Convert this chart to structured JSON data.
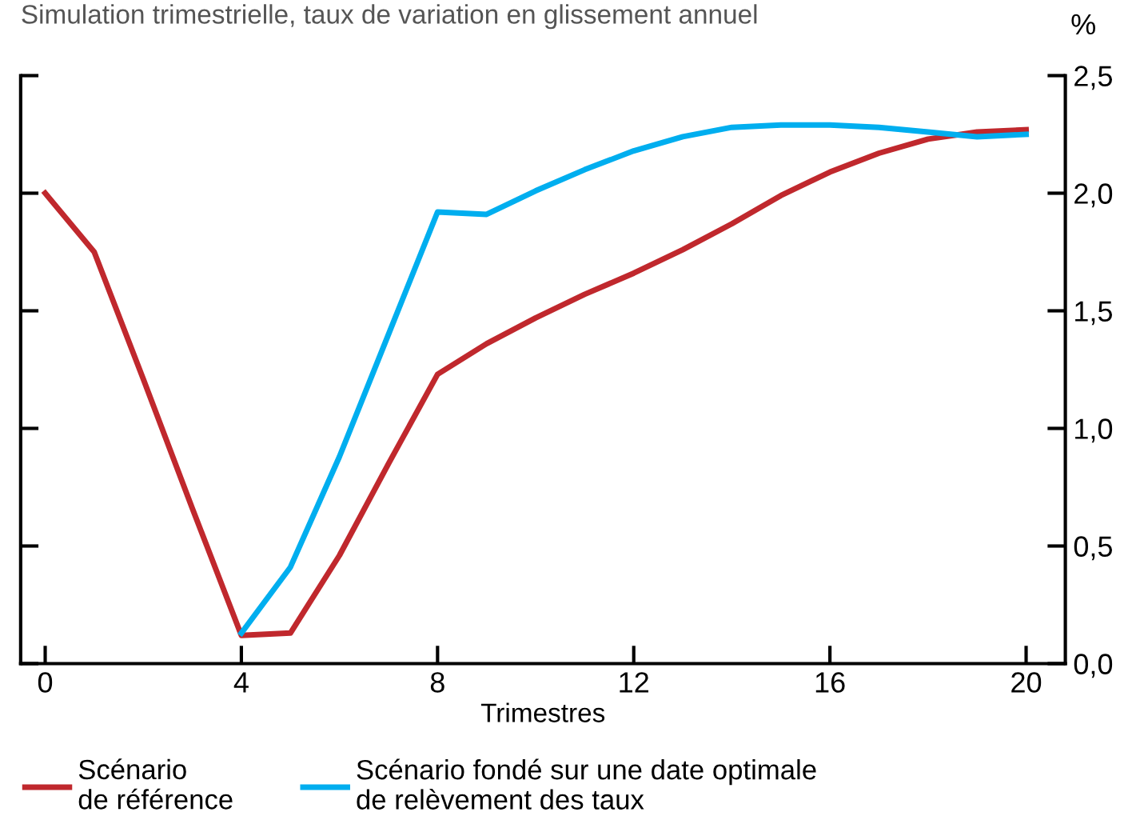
{
  "chart_data": {
    "type": "line",
    "subtitle": "Simulation trimestrielle, taux de variation en glissement annuel",
    "xlabel": "Trimestres",
    "ylabel": "%",
    "x": [
      0,
      1,
      2,
      3,
      4,
      5,
      6,
      7,
      8,
      9,
      10,
      11,
      12,
      13,
      14,
      15,
      16,
      17,
      18,
      19,
      20
    ],
    "series": [
      {
        "name": "Scénario\nde référence",
        "color": "#c0282d",
        "values": [
          2.0,
          1.75,
          1.21,
          0.66,
          0.12,
          0.13,
          0.46,
          0.85,
          1.23,
          1.36,
          1.47,
          1.57,
          1.66,
          1.76,
          1.87,
          1.99,
          2.09,
          2.17,
          2.23,
          2.26,
          2.27
        ]
      },
      {
        "name": "Scénario fondé sur une date optimale\nde relèvement des taux",
        "color": "#00aeef",
        "values": [
          null,
          null,
          null,
          null,
          0.13,
          0.41,
          0.88,
          1.4,
          1.92,
          1.91,
          2.01,
          2.1,
          2.18,
          2.24,
          2.28,
          2.29,
          2.29,
          2.28,
          2.26,
          2.24,
          2.25
        ]
      }
    ],
    "xlim": [
      -0.5,
      20.8
    ],
    "xticks": [
      0,
      4,
      8,
      12,
      16,
      20
    ],
    "ylim": [
      0,
      2.5
    ],
    "yticks": [
      {
        "value": 0,
        "label": "0,0"
      },
      {
        "value": 0.5,
        "label": "0,5"
      },
      {
        "value": 1,
        "label": "1,0"
      },
      {
        "value": 1.5,
        "label": "1,5"
      },
      {
        "value": 2,
        "label": "2,0"
      },
      {
        "value": 2.5,
        "label": "2,5"
      }
    ],
    "grid": false,
    "legend": "bottom",
    "marker": "none",
    "line_style": "solid"
  }
}
